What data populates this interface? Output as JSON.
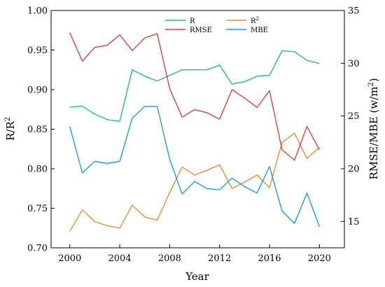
{
  "chart_data": {
    "type": "line",
    "xlabel": "Year",
    "ylabel_left": "R/R",
    "ylabel_left_sup": "2",
    "ylabel_right": "RMSE/MBE (w/m",
    "ylabel_right_sup": "2",
    "ylabel_right_end": ")",
    "xlim": [
      1998.5,
      2022.0
    ],
    "ylim_left": [
      0.7,
      1.0
    ],
    "ylim_right": [
      12.5,
      35.0
    ],
    "x_ticks": [
      2000,
      2004,
      2008,
      2012,
      2016,
      2020
    ],
    "x_tick_labels": [
      "2000",
      "2004",
      "2008",
      "2012",
      "2016",
      "2020"
    ],
    "y_left_ticks": [
      0.7,
      0.75,
      0.8,
      0.85,
      0.9,
      0.95,
      1.0
    ],
    "y_left_tick_labels": [
      "0.70",
      "0.75",
      "0.80",
      "0.85",
      "0.90",
      "0.95",
      "1.00"
    ],
    "y_right_ticks": [
      15,
      20,
      25,
      30,
      35
    ],
    "y_right_tick_labels": [
      "15",
      "20",
      "25",
      "30",
      "35"
    ],
    "grid": false,
    "legend_position": "top-center",
    "x": [
      2000,
      2001,
      2002,
      2003,
      2004,
      2005,
      2006,
      2007,
      2008,
      2009,
      2010,
      2011,
      2012,
      2013,
      2014,
      2015,
      2016,
      2017,
      2018,
      2019,
      2020
    ],
    "series": [
      {
        "name": "R",
        "legend_sup": "",
        "axis": "left",
        "color": "#1dbf85",
        "values": [
          0.878,
          0.879,
          0.869,
          0.862,
          0.86,
          0.925,
          0.917,
          0.911,
          0.918,
          0.925,
          0.925,
          0.925,
          0.931,
          0.907,
          0.91,
          0.917,
          0.918,
          0.949,
          0.948,
          0.937,
          0.933
        ]
      },
      {
        "name": "R",
        "legend_sup": "2",
        "axis": "left",
        "color": "#ee8a35",
        "values": [
          0.721,
          0.748,
          0.733,
          0.728,
          0.725,
          0.754,
          0.739,
          0.735,
          0.77,
          0.802,
          0.792,
          0.798,
          0.805,
          0.775,
          0.783,
          0.792,
          0.776,
          0.833,
          0.845,
          0.813,
          0.827
        ]
      },
      {
        "name": "RMSE",
        "legend_sup": "",
        "axis": "right",
        "color": "#e83c3c",
        "values": [
          32.9,
          30.2,
          31.5,
          31.7,
          32.7,
          31.2,
          32.4,
          32.8,
          27.6,
          24.9,
          25.6,
          25.3,
          24.7,
          27.5,
          26.7,
          25.8,
          27.4,
          21.8,
          20.8,
          24.0,
          21.8
        ]
      },
      {
        "name": "MBE",
        "legend_sup": "",
        "axis": "right",
        "color": "#1b9ee0",
        "values": [
          24.0,
          19.6,
          20.7,
          20.5,
          20.7,
          24.8,
          25.9,
          25.9,
          20.9,
          17.6,
          18.8,
          18.1,
          18.0,
          19.1,
          18.3,
          17.7,
          20.2,
          16.0,
          14.8,
          17.7,
          14.5
        ]
      }
    ]
  }
}
